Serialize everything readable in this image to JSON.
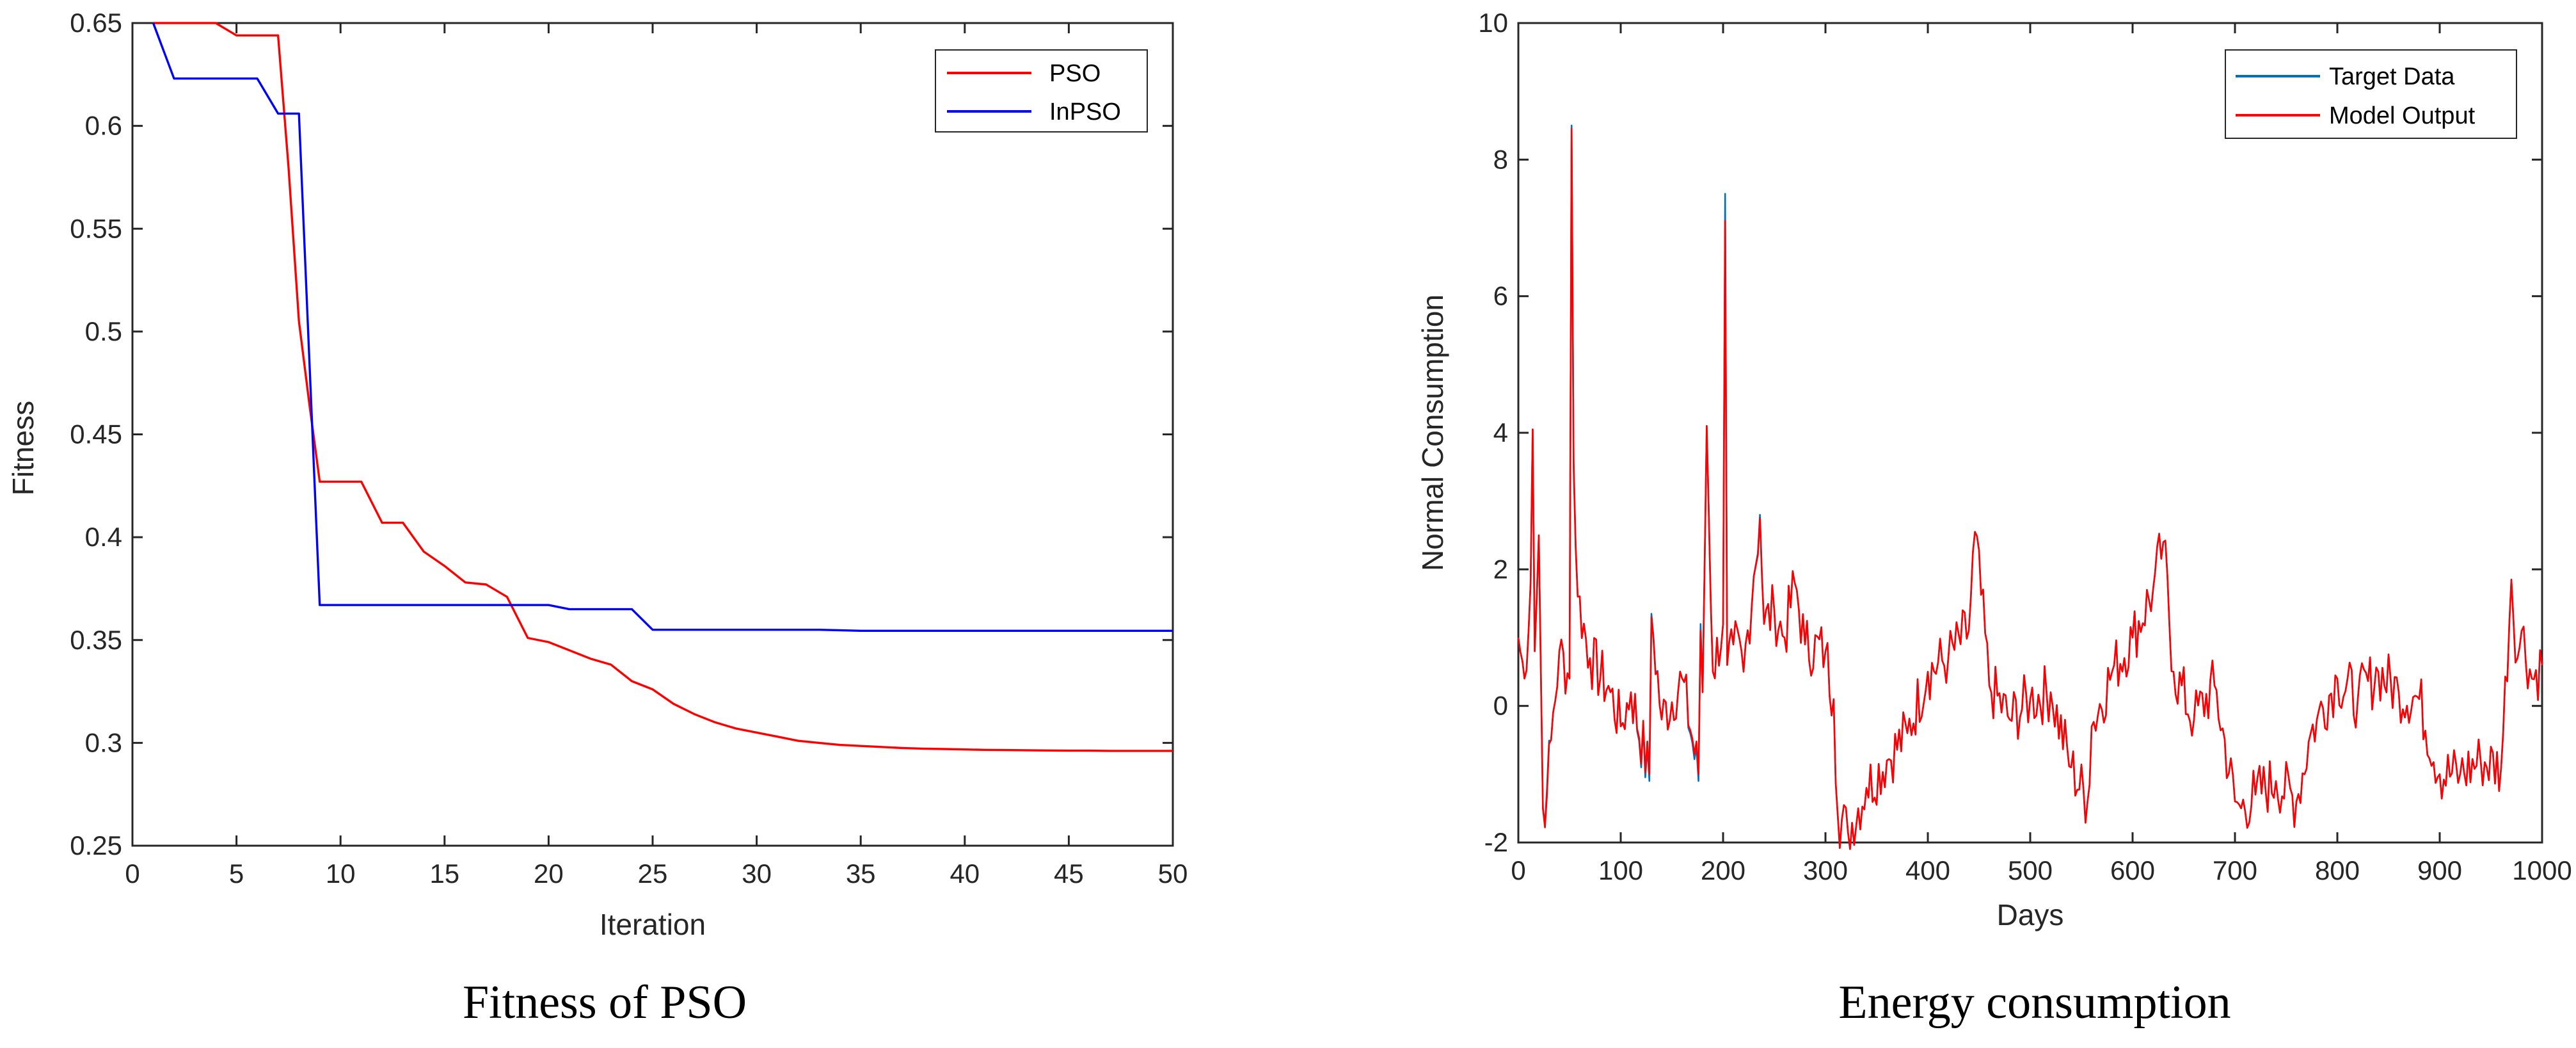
{
  "chart_data": [
    {
      "type": "line",
      "title": "",
      "xlabel": "Iteration",
      "ylabel": "Fitness",
      "xlim": [
        0,
        50
      ],
      "ylim": [
        0.25,
        0.65
      ],
      "xticks": [
        0,
        5,
        10,
        15,
        20,
        25,
        30,
        35,
        40,
        45,
        50
      ],
      "yticks": [
        0.25,
        0.3,
        0.35,
        0.4,
        0.45,
        0.5,
        0.55,
        0.6,
        0.65
      ],
      "xtick_labels": [
        "0",
        "5",
        "10",
        "15",
        "20",
        "25",
        "30",
        "35",
        "40",
        "45",
        "50"
      ],
      "ytick_labels": [
        "0.25",
        "0.3",
        "0.35",
        "0.4",
        "0.45",
        "0.5",
        "0.55",
        "0.6",
        "0.65"
      ],
      "legend_position": "top-right",
      "caption": "Fitness of PSO",
      "series": [
        {
          "name": "PSO",
          "color": "#ff0000",
          "x": [
            1,
            2,
            3,
            4,
            5,
            6,
            7,
            7.5,
            8,
            8.5,
            9,
            10,
            11,
            12,
            13,
            14,
            15,
            16,
            17,
            18,
            19,
            20,
            21,
            22,
            23,
            24,
            25,
            26,
            27,
            28,
            29,
            30,
            31,
            32,
            33,
            34,
            35,
            36,
            37,
            38,
            39,
            40,
            41,
            42,
            43,
            44,
            45,
            46,
            47,
            48,
            49,
            50
          ],
          "y": [
            0.65,
            0.65,
            0.65,
            0.65,
            0.644,
            0.644,
            0.644,
            0.58,
            0.505,
            0.465,
            0.427,
            0.427,
            0.427,
            0.407,
            0.407,
            0.393,
            0.386,
            0.378,
            0.377,
            0.371,
            0.351,
            0.349,
            0.345,
            0.341,
            0.338,
            0.33,
            0.326,
            0.319,
            0.314,
            0.31,
            0.307,
            0.305,
            0.303,
            0.301,
            0.3,
            0.299,
            0.2985,
            0.298,
            0.2975,
            0.2972,
            0.297,
            0.2968,
            0.2966,
            0.2965,
            0.2964,
            0.2963,
            0.2962,
            0.2962,
            0.2961,
            0.2961,
            0.2961,
            0.2961
          ]
        },
        {
          "name": "InPSO",
          "color": "#0000ff",
          "x": [
            1,
            2,
            3,
            4,
            5,
            6,
            7,
            8,
            9,
            10,
            15,
            20,
            21,
            22,
            23,
            24,
            25,
            30,
            33,
            35,
            40,
            45,
            50
          ],
          "y": [
            0.65,
            0.623,
            0.623,
            0.623,
            0.623,
            0.623,
            0.606,
            0.606,
            0.367,
            0.367,
            0.367,
            0.367,
            0.365,
            0.365,
            0.365,
            0.365,
            0.355,
            0.355,
            0.355,
            0.3545,
            0.3545,
            0.3545,
            0.3545
          ]
        }
      ]
    },
    {
      "type": "line",
      "title": "",
      "xlabel": "Days",
      "ylabel": "Normal Consumption",
      "xlim": [
        0,
        1000
      ],
      "ylim": [
        -2,
        10
      ],
      "xticks": [
        0,
        100,
        200,
        300,
        400,
        500,
        600,
        700,
        800,
        900,
        1000
      ],
      "yticks": [
        -2,
        0,
        2,
        4,
        6,
        8,
        10
      ],
      "xtick_labels": [
        "0",
        "100",
        "200",
        "300",
        "400",
        "500",
        "600",
        "700",
        "800",
        "900",
        "1000"
      ],
      "ytick_labels": [
        "-2",
        "0",
        "2",
        "4",
        "6",
        "8",
        "10"
      ],
      "legend_position": "top-right",
      "caption": "Energy consumption",
      "series": [
        {
          "name": "Target Data",
          "color": "#0072bd",
          "x": [
            0,
            6,
            12,
            14,
            16,
            20,
            24,
            28,
            32,
            40,
            50,
            52,
            54,
            58,
            70,
            90,
            100,
            110,
            128,
            130,
            140,
            160,
            176,
            178,
            180,
            184,
            190,
            200,
            202,
            204,
            210,
            220,
            230,
            236,
            240,
            250,
            260,
            270,
            280,
            300,
            308,
            312,
            322,
            340,
            360,
            380,
            400,
            420,
            440,
            446,
            460,
            480,
            500,
            520,
            540,
            556,
            560,
            580,
            600,
            620,
            630,
            640,
            660,
            680,
            700,
            706,
            720,
            740,
            760,
            774,
            780,
            800,
            820,
            840,
            860,
            880,
            900,
            920,
            940,
            960,
            970,
            976,
            980,
            990,
            1000
          ],
          "values": [
            1.0,
            0.4,
            1.8,
            4.05,
            0.8,
            2.5,
            -1.5,
            -1.2,
            -0.5,
            0.8,
            0.4,
            8.5,
            3.6,
            1.6,
            0.7,
            0.2,
            -0.3,
            0.2,
            -1.1,
            1.35,
            -0.2,
            0.4,
            -1.1,
            1.2,
            0.2,
            4.1,
            0.5,
            1.2,
            7.5,
            0.6,
            0.9,
            0.5,
            1.9,
            2.8,
            1.2,
            1.4,
            1.0,
            1.8,
            0.9,
            0.8,
            0.1,
            -1.6,
            -1.85,
            -1.2,
            -0.8,
            -0.4,
            0.5,
            0.7,
            1.1,
            2.55,
            0.3,
            -0.2,
            0.1,
            0.2,
            -0.9,
            -1.4,
            -0.3,
            0.5,
            1.0,
            1.7,
            2.4,
            0.5,
            -0.2,
            0.3,
            -1.4,
            -1.5,
            -1.3,
            -1.1,
            -1.4,
            -0.4,
            -0.2,
            0.4,
            0.1,
            0.5,
            0.2,
            0.1,
            -1.0,
            -1.0,
            -0.8,
            -0.9,
            1.85,
            0.7,
            1.1,
            0.4,
            0.6
          ]
        },
        {
          "name": "Model Output",
          "color": "#ff0000",
          "x": [
            0,
            6,
            12,
            14,
            16,
            20,
            24,
            28,
            32,
            40,
            50,
            52,
            54,
            58,
            70,
            90,
            100,
            110,
            128,
            130,
            140,
            160,
            176,
            178,
            180,
            184,
            190,
            200,
            202,
            204,
            210,
            220,
            230,
            236,
            240,
            250,
            260,
            270,
            280,
            300,
            308,
            312,
            322,
            340,
            360,
            380,
            400,
            420,
            440,
            446,
            460,
            480,
            500,
            520,
            540,
            556,
            560,
            580,
            600,
            620,
            630,
            640,
            660,
            680,
            700,
            706,
            720,
            740,
            760,
            774,
            780,
            800,
            820,
            840,
            860,
            880,
            900,
            920,
            940,
            960,
            970,
            976,
            980,
            990,
            1000
          ],
          "values": [
            1.0,
            0.4,
            1.8,
            4.05,
            0.8,
            2.5,
            -1.5,
            -1.3,
            -0.5,
            0.8,
            0.4,
            8.45,
            3.5,
            1.6,
            0.7,
            0.2,
            -0.3,
            0.2,
            -1.0,
            1.3,
            -0.2,
            0.4,
            -1.0,
            1.1,
            0.2,
            4.1,
            0.5,
            1.2,
            7.1,
            0.6,
            0.9,
            0.5,
            1.9,
            2.75,
            1.2,
            1.4,
            1.0,
            1.8,
            0.9,
            0.8,
            0.1,
            -1.6,
            -1.85,
            -1.2,
            -0.8,
            -0.4,
            0.5,
            0.7,
            1.1,
            2.55,
            0.3,
            -0.2,
            0.1,
            0.2,
            -0.9,
            -1.4,
            -0.3,
            0.5,
            1.0,
            1.7,
            2.4,
            0.5,
            -0.2,
            0.3,
            -1.4,
            -1.5,
            -1.3,
            -1.1,
            -1.4,
            -0.4,
            -0.2,
            0.4,
            0.1,
            0.5,
            0.2,
            0.1,
            -1.0,
            -1.0,
            -0.8,
            -0.9,
            1.85,
            0.7,
            1.1,
            0.4,
            0.6
          ]
        }
      ]
    }
  ]
}
